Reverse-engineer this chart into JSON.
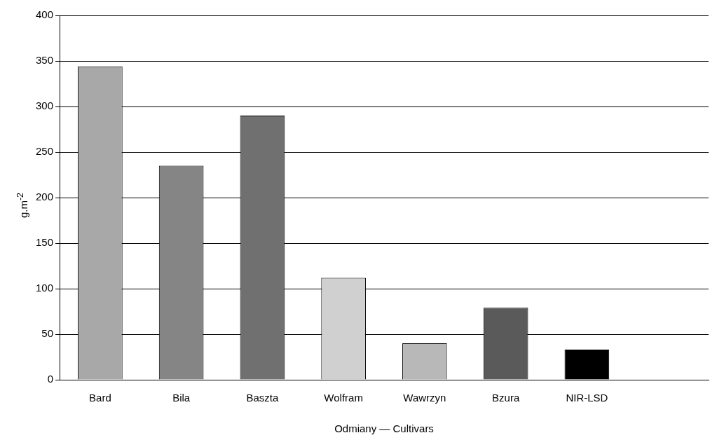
{
  "chart_data": {
    "type": "bar",
    "xlabel": "Odmiany — Cultivars",
    "ylabel": "g.m$^{-2}$",
    "categories": [
      "Bard",
      "Bila",
      "Baszta",
      "Wolfram",
      "Wawrzyn",
      "Bzura",
      "NIR-LSD",
      null
    ],
    "values": [
      344,
      235,
      290,
      112,
      40,
      79,
      33,
      null
    ],
    "colors": [
      "#a8a8a8",
      "#858585",
      "#707070",
      "#d0d0d0",
      "#b8b8b8",
      "#5a5a5a",
      "#000000",
      "#000000"
    ],
    "ylim": [
      0,
      400
    ],
    "yticks": [
      0,
      50,
      100,
      150,
      200,
      250,
      300,
      350,
      400
    ],
    "grid": "y",
    "legend": false
  }
}
